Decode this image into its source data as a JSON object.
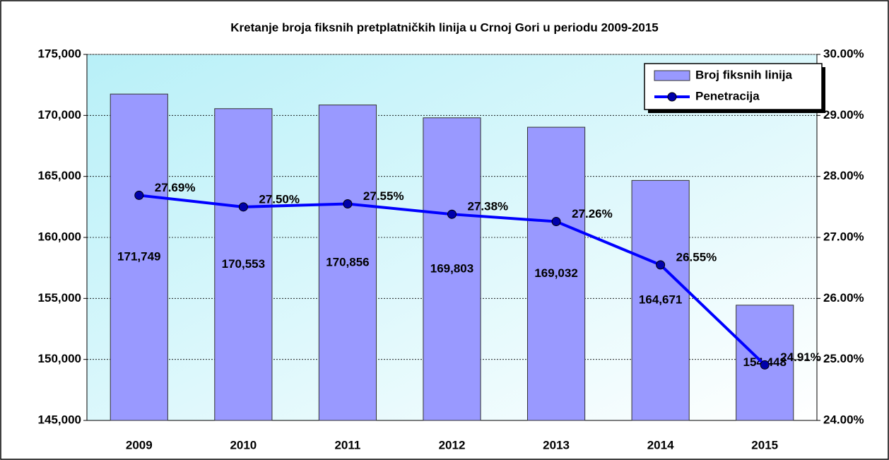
{
  "chart_data": {
    "type": "bar",
    "title": "Kretanje broja fiksnih pretplatničkih linija u Crnoj Gori u periodu 2009-2015",
    "categories": [
      "2009",
      "2010",
      "2011",
      "2012",
      "2013",
      "2014",
      "2015"
    ],
    "series": [
      {
        "name": "Broj fiksnih linija",
        "type": "bar",
        "color": "#9999ff",
        "values": [
          171749,
          170553,
          170856,
          169803,
          169032,
          164671,
          154448
        ],
        "value_labels": [
          "171,749",
          "170,553",
          "170,856",
          "169,803",
          "169,032",
          "164,671",
          "154,448"
        ]
      },
      {
        "name": "Penetracija",
        "type": "line",
        "axis": "y2",
        "color": "#0000ff",
        "values": [
          27.69,
          27.5,
          27.55,
          27.38,
          27.26,
          26.55,
          24.91
        ],
        "value_labels": [
          "27.69%",
          "27.50%",
          "27.55%",
          "27.38%",
          "27.26%",
          "26.55%",
          "24.91%"
        ]
      }
    ],
    "ylim": [
      145000,
      175000
    ],
    "yticks": [
      {
        "value": 145000,
        "label": "145,000"
      },
      {
        "value": 150000,
        "label": "150,000"
      },
      {
        "value": 155000,
        "label": "155,000"
      },
      {
        "value": 160000,
        "label": "160,000"
      },
      {
        "value": 165000,
        "label": "165,000"
      },
      {
        "value": 170000,
        "label": "170,000"
      },
      {
        "value": 175000,
        "label": "175,000"
      }
    ],
    "y2lim": [
      24,
      30
    ],
    "y2ticks": [
      {
        "value": 24,
        "label": "24.00%"
      },
      {
        "value": 25,
        "label": "25.00%"
      },
      {
        "value": 26,
        "label": "26.00%"
      },
      {
        "value": 27,
        "label": "27.00%"
      },
      {
        "value": 28,
        "label": "28.00%"
      },
      {
        "value": 29,
        "label": "29.00%"
      },
      {
        "value": 30,
        "label": "30.00%"
      }
    ],
    "grid": true,
    "legend": "top-right"
  }
}
